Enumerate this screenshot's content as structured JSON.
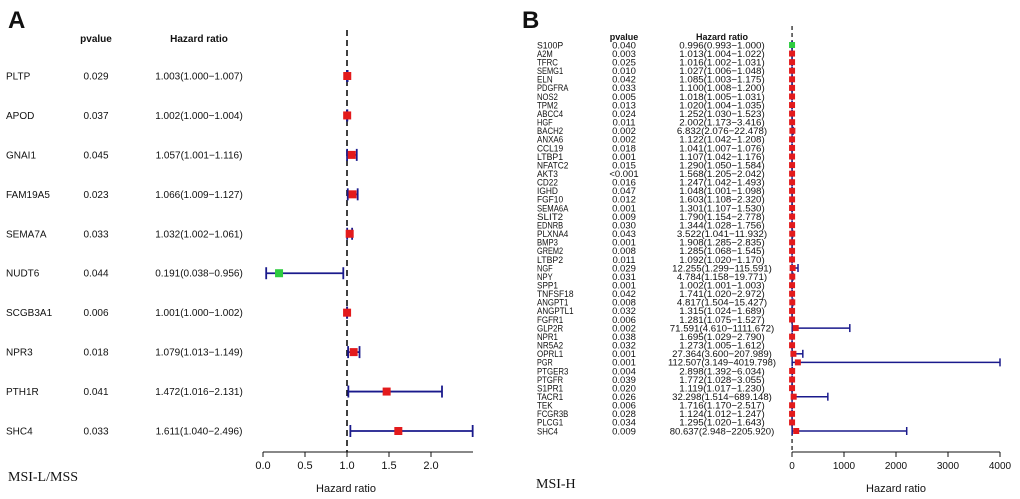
{
  "chart_data": [
    {
      "type": "forest",
      "panel_label": "A",
      "footer_label": "MSI-L/MSS",
      "col_pvalue": "pvalue",
      "col_hr": "Hazard ratio",
      "xlabel": "Hazard ratio",
      "xlim": [
        0,
        2.5
      ],
      "xticks": [
        0.0,
        0.5,
        1.0,
        1.5,
        2.0
      ],
      "xtick_labels": [
        "0.0",
        "0.5",
        "1.0",
        "1.5",
        "2.0"
      ],
      "reference": 1,
      "rows": [
        {
          "gene": "PLTP",
          "p": "0.029",
          "hr_text": "1.003(1.000−1.007)",
          "hr": 1.003,
          "lo": 1.0,
          "hi": 1.007,
          "color": "#e31a1c"
        },
        {
          "gene": "APOD",
          "p": "0.037",
          "hr_text": "1.002(1.000−1.004)",
          "hr": 1.002,
          "lo": 1.0,
          "hi": 1.004,
          "color": "#e31a1c"
        },
        {
          "gene": "GNAI1",
          "p": "0.045",
          "hr_text": "1.057(1.001−1.116)",
          "hr": 1.057,
          "lo": 1.001,
          "hi": 1.116,
          "color": "#e31a1c"
        },
        {
          "gene": "FAM19A5",
          "p": "0.023",
          "hr_text": "1.066(1.009−1.127)",
          "hr": 1.066,
          "lo": 1.009,
          "hi": 1.127,
          "color": "#e31a1c"
        },
        {
          "gene": "SEMA7A",
          "p": "0.033",
          "hr_text": "1.032(1.002−1.061)",
          "hr": 1.032,
          "lo": 1.002,
          "hi": 1.061,
          "color": "#e31a1c"
        },
        {
          "gene": "NUDT6",
          "p": "0.044",
          "hr_text": "0.191(0.038−0.956)",
          "hr": 0.191,
          "lo": 0.038,
          "hi": 0.956,
          "color": "#2ecc40"
        },
        {
          "gene": "SCGB3A1",
          "p": "0.006",
          "hr_text": "1.001(1.000−1.002)",
          "hr": 1.001,
          "lo": 1.0,
          "hi": 1.002,
          "color": "#e31a1c"
        },
        {
          "gene": "NPR3",
          "p": "0.018",
          "hr_text": "1.079(1.013−1.149)",
          "hr": 1.079,
          "lo": 1.013,
          "hi": 1.149,
          "color": "#e31a1c"
        },
        {
          "gene": "PTH1R",
          "p": "0.041",
          "hr_text": "1.472(1.016−2.131)",
          "hr": 1.472,
          "lo": 1.016,
          "hi": 2.131,
          "color": "#e31a1c"
        },
        {
          "gene": "SHC4",
          "p": "0.033",
          "hr_text": "1.611(1.040−2.496)",
          "hr": 1.611,
          "lo": 1.04,
          "hi": 2.496,
          "color": "#e31a1c"
        }
      ]
    },
    {
      "type": "forest",
      "panel_label": "B",
      "footer_label": "MSI-H",
      "col_pvalue": "pvalue",
      "col_hr": "Hazard ratio",
      "xlabel": "Hazard ratio",
      "xlim": [
        0,
        4000
      ],
      "xticks": [
        0,
        1000,
        2000,
        3000,
        4000
      ],
      "xtick_labels": [
        "0",
        "1000",
        "2000",
        "3000",
        "4000"
      ],
      "reference": 1,
      "rows": [
        {
          "gene": "S100P",
          "p": "0.040",
          "hr_text": "0.996(0.993−1.000)",
          "hr": 0.996,
          "lo": 0.993,
          "hi": 1.0,
          "color": "#2ecc40"
        },
        {
          "gene": "A2M",
          "p": "0.003",
          "hr_text": "1.013(1.004−1.022)",
          "hr": 1.013,
          "lo": 1.004,
          "hi": 1.022,
          "color": "#e31a1c"
        },
        {
          "gene": "TFRC",
          "p": "0.025",
          "hr_text": "1.016(1.002−1.031)",
          "hr": 1.016,
          "lo": 1.002,
          "hi": 1.031,
          "color": "#e31a1c"
        },
        {
          "gene": "SEMG1",
          "p": "0.010",
          "hr_text": "1.027(1.006−1.048)",
          "hr": 1.027,
          "lo": 1.006,
          "hi": 1.048,
          "color": "#e31a1c"
        },
        {
          "gene": "ELN",
          "p": "0.042",
          "hr_text": "1.085(1.003−1.175)",
          "hr": 1.085,
          "lo": 1.003,
          "hi": 1.175,
          "color": "#e31a1c"
        },
        {
          "gene": "PDGFRA",
          "p": "0.033",
          "hr_text": "1.100(1.008−1.200)",
          "hr": 1.1,
          "lo": 1.008,
          "hi": 1.2,
          "color": "#e31a1c"
        },
        {
          "gene": "NOS2",
          "p": "0.005",
          "hr_text": "1.018(1.005−1.031)",
          "hr": 1.018,
          "lo": 1.005,
          "hi": 1.031,
          "color": "#e31a1c"
        },
        {
          "gene": "TPM2",
          "p": "0.013",
          "hr_text": "1.020(1.004−1.035)",
          "hr": 1.02,
          "lo": 1.004,
          "hi": 1.035,
          "color": "#e31a1c"
        },
        {
          "gene": "ABCC4",
          "p": "0.024",
          "hr_text": "1.252(1.030−1.523)",
          "hr": 1.252,
          "lo": 1.03,
          "hi": 1.523,
          "color": "#e31a1c"
        },
        {
          "gene": "HGF",
          "p": "0.011",
          "hr_text": "2.002(1.173−3.416)",
          "hr": 2.002,
          "lo": 1.173,
          "hi": 3.416,
          "color": "#e31a1c"
        },
        {
          "gene": "BACH2",
          "p": "0.002",
          "hr_text": "6.832(2.076−22.478)",
          "hr": 6.832,
          "lo": 2.076,
          "hi": 22.478,
          "color": "#e31a1c"
        },
        {
          "gene": "ANXA6",
          "p": "0.002",
          "hr_text": "1.122(1.042−1.208)",
          "hr": 1.122,
          "lo": 1.042,
          "hi": 1.208,
          "color": "#e31a1c"
        },
        {
          "gene": "CCL19",
          "p": "0.018",
          "hr_text": "1.041(1.007−1.076)",
          "hr": 1.041,
          "lo": 1.007,
          "hi": 1.076,
          "color": "#e31a1c"
        },
        {
          "gene": "LTBP1",
          "p": "0.001",
          "hr_text": "1.107(1.042−1.176)",
          "hr": 1.107,
          "lo": 1.042,
          "hi": 1.176,
          "color": "#e31a1c"
        },
        {
          "gene": "NFATC2",
          "p": "0.015",
          "hr_text": "1.290(1.050−1.584)",
          "hr": 1.29,
          "lo": 1.05,
          "hi": 1.584,
          "color": "#e31a1c"
        },
        {
          "gene": "AKT3",
          "p": "<0.001",
          "hr_text": "1.568(1.205−2.042)",
          "hr": 1.568,
          "lo": 1.205,
          "hi": 2.042,
          "color": "#e31a1c"
        },
        {
          "gene": "CD22",
          "p": "0.016",
          "hr_text": "1.247(1.042−1.493)",
          "hr": 1.247,
          "lo": 1.042,
          "hi": 1.493,
          "color": "#e31a1c"
        },
        {
          "gene": "IGHD",
          "p": "0.047",
          "hr_text": "1.048(1.001−1.098)",
          "hr": 1.048,
          "lo": 1.001,
          "hi": 1.098,
          "color": "#e31a1c"
        },
        {
          "gene": "FGF10",
          "p": "0.012",
          "hr_text": "1.603(1.108−2.320)",
          "hr": 1.603,
          "lo": 1.108,
          "hi": 2.32,
          "color": "#e31a1c"
        },
        {
          "gene": "SEMA6A",
          "p": "0.001",
          "hr_text": "1.301(1.107−1.530)",
          "hr": 1.301,
          "lo": 1.107,
          "hi": 1.53,
          "color": "#e31a1c"
        },
        {
          "gene": "SLIT2",
          "p": "0.009",
          "hr_text": "1.790(1.154−2.778)",
          "hr": 1.79,
          "lo": 1.154,
          "hi": 2.778,
          "color": "#e31a1c"
        },
        {
          "gene": "EDNRB",
          "p": "0.030",
          "hr_text": "1.344(1.028−1.756)",
          "hr": 1.344,
          "lo": 1.028,
          "hi": 1.756,
          "color": "#e31a1c"
        },
        {
          "gene": "PLXNA4",
          "p": "0.043",
          "hr_text": "3.522(1.041−11.932)",
          "hr": 3.522,
          "lo": 1.041,
          "hi": 11.932,
          "color": "#e31a1c"
        },
        {
          "gene": "BMP3",
          "p": "0.001",
          "hr_text": "1.908(1.285−2.835)",
          "hr": 1.908,
          "lo": 1.285,
          "hi": 2.835,
          "color": "#e31a1c"
        },
        {
          "gene": "GREM2",
          "p": "0.008",
          "hr_text": "1.285(1.068−1.545)",
          "hr": 1.285,
          "lo": 1.068,
          "hi": 1.545,
          "color": "#e31a1c"
        },
        {
          "gene": "LTBP2",
          "p": "0.011",
          "hr_text": "1.092(1.020−1.170)",
          "hr": 1.092,
          "lo": 1.02,
          "hi": 1.17,
          "color": "#e31a1c"
        },
        {
          "gene": "NGF",
          "p": "0.029",
          "hr_text": "12.255(1.299−115.591)",
          "hr": 12.255,
          "lo": 1.299,
          "hi": 115.591,
          "color": "#e31a1c"
        },
        {
          "gene": "NPY",
          "p": "0.031",
          "hr_text": "4.784(1.158−19.771)",
          "hr": 4.784,
          "lo": 1.158,
          "hi": 19.771,
          "color": "#e31a1c"
        },
        {
          "gene": "SPP1",
          "p": "0.001",
          "hr_text": "1.002(1.001−1.003)",
          "hr": 1.002,
          "lo": 1.001,
          "hi": 1.003,
          "color": "#e31a1c"
        },
        {
          "gene": "TNFSF18",
          "p": "0.042",
          "hr_text": "1.741(1.020−2.972)",
          "hr": 1.741,
          "lo": 1.02,
          "hi": 2.972,
          "color": "#e31a1c"
        },
        {
          "gene": "ANGPT1",
          "p": "0.008",
          "hr_text": "4.817(1.504−15.427)",
          "hr": 4.817,
          "lo": 1.504,
          "hi": 15.427,
          "color": "#e31a1c"
        },
        {
          "gene": "ANGPTL1",
          "p": "0.032",
          "hr_text": "1.315(1.024−1.689)",
          "hr": 1.315,
          "lo": 1.024,
          "hi": 1.689,
          "color": "#e31a1c"
        },
        {
          "gene": "FGFR1",
          "p": "0.006",
          "hr_text": "1.281(1.075−1.527)",
          "hr": 1.281,
          "lo": 1.075,
          "hi": 1.527,
          "color": "#e31a1c"
        },
        {
          "gene": "GLP2R",
          "p": "0.002",
          "hr_text": "71.591(4.610−1111.672)",
          "hr": 71.591,
          "lo": 4.61,
          "hi": 1111.672,
          "color": "#e31a1c"
        },
        {
          "gene": "NPR1",
          "p": "0.038",
          "hr_text": "1.695(1.029−2.790)",
          "hr": 1.695,
          "lo": 1.029,
          "hi": 2.79,
          "color": "#e31a1c"
        },
        {
          "gene": "NR5A2",
          "p": "0.032",
          "hr_text": "1.273(1.005−1.612)",
          "hr": 1.273,
          "lo": 1.005,
          "hi": 1.612,
          "color": "#e31a1c"
        },
        {
          "gene": "OPRL1",
          "p": "0.001",
          "hr_text": "27.364(3.600−207.989)",
          "hr": 27.364,
          "lo": 3.6,
          "hi": 207.989,
          "color": "#e31a1c"
        },
        {
          "gene": "PGR",
          "p": "0.001",
          "hr_text": "112.507(3.149−4019.798)",
          "hr": 112.507,
          "lo": 3.149,
          "hi": 4019.798,
          "color": "#e31a1c"
        },
        {
          "gene": "PTGER3",
          "p": "0.004",
          "hr_text": "2.898(1.392−6.034)",
          "hr": 2.898,
          "lo": 1.392,
          "hi": 6.034,
          "color": "#e31a1c"
        },
        {
          "gene": "PTGFR",
          "p": "0.039",
          "hr_text": "1.772(1.028−3.055)",
          "hr": 1.772,
          "lo": 1.028,
          "hi": 3.055,
          "color": "#e31a1c"
        },
        {
          "gene": "S1PR1",
          "p": "0.020",
          "hr_text": "1.119(1.017−1.230)",
          "hr": 1.119,
          "lo": 1.017,
          "hi": 1.23,
          "color": "#e31a1c"
        },
        {
          "gene": "TACR1",
          "p": "0.026",
          "hr_text": "32.298(1.514−689.148)",
          "hr": 32.298,
          "lo": 1.514,
          "hi": 689.148,
          "color": "#e31a1c"
        },
        {
          "gene": "TEK",
          "p": "0.006",
          "hr_text": "1.716(1.170−2.517)",
          "hr": 1.716,
          "lo": 1.17,
          "hi": 2.517,
          "color": "#e31a1c"
        },
        {
          "gene": "FCGR3B",
          "p": "0.028",
          "hr_text": "1.124(1.012−1.247)",
          "hr": 1.124,
          "lo": 1.012,
          "hi": 1.247,
          "color": "#e31a1c"
        },
        {
          "gene": "PLCG1",
          "p": "0.034",
          "hr_text": "1.295(1.020−1.643)",
          "hr": 1.295,
          "lo": 1.02,
          "hi": 1.643,
          "color": "#e31a1c"
        },
        {
          "gene": "SHC4",
          "p": "0.009",
          "hr_text": "80.637(2.948−2205.920)",
          "hr": 80.637,
          "lo": 2.948,
          "hi": 2205.92,
          "color": "#e31a1c"
        }
      ]
    }
  ],
  "colors": {
    "ci_line": "#1a1a8c",
    "axis": "#111111",
    "ref_line": "#111111"
  }
}
